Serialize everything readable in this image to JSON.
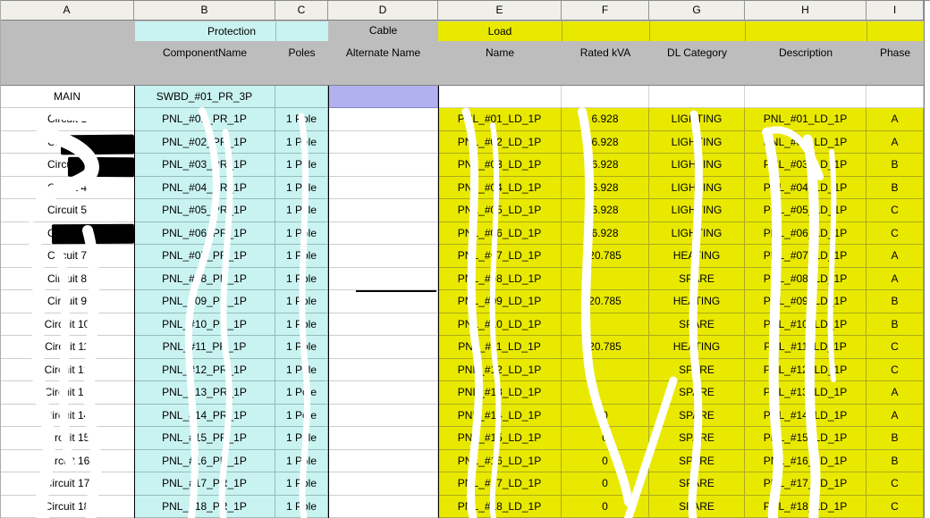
{
  "columns": {
    "letters": [
      "A",
      "B",
      "C",
      "D",
      "E",
      "F",
      "G",
      "H",
      "I"
    ]
  },
  "groups": {
    "protection_label": "Protection",
    "cable_label": "Cable",
    "load_label": "Load"
  },
  "fields": {
    "component_name": "ComponentName",
    "poles": "Poles",
    "alternate_name": "Alternate Name",
    "name": "Name",
    "rated_kva": "Rated kVA",
    "dl_category": "DL Category",
    "description": "Description",
    "phase": "Phase"
  },
  "main_row": {
    "label": "MAIN",
    "component_name": "SWBD_#01_PR_3P"
  },
  "rows": [
    {
      "circuit": "Circuit 1",
      "component": "PNL_#01_PR_1P",
      "poles": "1 Pole",
      "load_name": "PNL_#01_LD_1P",
      "rated_kva": "6.928",
      "dl_category": "LIGHTING",
      "description": "PNL_#01_LD_1P",
      "phase": "A"
    },
    {
      "circuit": "Circuit 2",
      "component": "PNL_#02_PR_1P",
      "poles": "1 Pole",
      "load_name": "PNL_#02_LD_1P",
      "rated_kva": "6.928",
      "dl_category": "LIGHTING",
      "description": "PNL_#02_LD_1P",
      "phase": "A"
    },
    {
      "circuit": "Circuit 3",
      "component": "PNL_#03_PR_1P",
      "poles": "1 Pole",
      "load_name": "PNL_#03_LD_1P",
      "rated_kva": "6.928",
      "dl_category": "LIGHTING",
      "description": "PNL_#03_LD_1P",
      "phase": "B"
    },
    {
      "circuit": "Circuit 4",
      "component": "PNL_#04_PR_1P",
      "poles": "1 Pole",
      "load_name": "PNL_#04_LD_1P",
      "rated_kva": "6.928",
      "dl_category": "LIGHTING",
      "description": "PNL_#04_LD_1P",
      "phase": "B"
    },
    {
      "circuit": "Circuit 5",
      "component": "PNL_#05_PR_1P",
      "poles": "1 Pole",
      "load_name": "PNL_#05_LD_1P",
      "rated_kva": "6.928",
      "dl_category": "LIGHTING",
      "description": "PNL_#05_LD_1P",
      "phase": "C"
    },
    {
      "circuit": "Circuit 6",
      "component": "PNL_#06_PR_1P",
      "poles": "1 Pole",
      "load_name": "PNL_#06_LD_1P",
      "rated_kva": "6.928",
      "dl_category": "LIGHTING",
      "description": "PNL_#06_LD_1P",
      "phase": "C"
    },
    {
      "circuit": "Circuit 7",
      "component": "PNL_#07_PR_1P",
      "poles": "1 Pole",
      "load_name": "PNL_#07_LD_1P",
      "rated_kva": "20.785",
      "dl_category": "HEATING",
      "description": "PNL_#07_LD_1P",
      "phase": "A"
    },
    {
      "circuit": "Circuit 8",
      "component": "PNL_#08_PR_1P",
      "poles": "1 Pole",
      "load_name": "PNL_#08_LD_1P",
      "rated_kva": "",
      "dl_category": "SPARE",
      "description": "PNL_#08_LD_1P",
      "phase": "A"
    },
    {
      "circuit": "Circuit 9",
      "component": "PNL_#09_PR_1P",
      "poles": "1 Pole",
      "load_name": "PNL_#09_LD_1P",
      "rated_kva": "20.785",
      "dl_category": "HEATING",
      "description": "PNL_#09_LD_1P",
      "phase": "B"
    },
    {
      "circuit": "Circuit 10",
      "component": "PNL_#10_PR_1P",
      "poles": "1 Pole",
      "load_name": "PNL_#10_LD_1P",
      "rated_kva": "",
      "dl_category": "SPARE",
      "description": "PNL_#10_LD_1P",
      "phase": "B"
    },
    {
      "circuit": "Circuit 11",
      "component": "PNL_#11_PR_1P",
      "poles": "1 Pole",
      "load_name": "PNL_#11_LD_1P",
      "rated_kva": "20.785",
      "dl_category": "HEATING",
      "description": "PNL_#11_LD_1P",
      "phase": "C"
    },
    {
      "circuit": "Circuit 12",
      "component": "PNL_#12_PR_1P",
      "poles": "1 Pole",
      "load_name": "PNL_#12_LD_1P",
      "rated_kva": "",
      "dl_category": "SPARE",
      "description": "PNL_#12_LD_1P",
      "phase": "C"
    },
    {
      "circuit": "Circuit 13",
      "component": "PNL_#13_PR_1P",
      "poles": "1 Pole",
      "load_name": "PNL_#13_LD_1P",
      "rated_kva": "",
      "dl_category": "SPARE",
      "description": "PNL_#13_LD_1P",
      "phase": "A"
    },
    {
      "circuit": "Circuit 14",
      "component": "PNL_#14_PR_1P",
      "poles": "1 Pole",
      "load_name": "PNL_#14_LD_1P",
      "rated_kva": "0",
      "dl_category": "SPARE",
      "description": "PNL_#14_LD_1P",
      "phase": "A"
    },
    {
      "circuit": "Circuit 15",
      "component": "PNL_#15_PR_1P",
      "poles": "1 Pole",
      "load_name": "PNL_#15_LD_1P",
      "rated_kva": "0",
      "dl_category": "SPARE",
      "description": "PNL_#15_LD_1P",
      "phase": "B"
    },
    {
      "circuit": "Circuit 16",
      "component": "PNL_#16_PR_1P",
      "poles": "1 Pole",
      "load_name": "PNL_#16_LD_1P",
      "rated_kva": "0",
      "dl_category": "SPARE",
      "description": "PNL_#16_LD_1P",
      "phase": "B"
    },
    {
      "circuit": "Circuit 17",
      "component": "PNL_#17_PR_1P",
      "poles": "1 Pole",
      "load_name": "PNL_#17_LD_1P",
      "rated_kva": "0",
      "dl_category": "SPARE",
      "description": "PNL_#17_LD_1P",
      "phase": "C"
    },
    {
      "circuit": "Circuit 18",
      "component": "PNL_#18_PR_1P",
      "poles": "1 Pole",
      "load_name": "PNL_#18_LD_1P",
      "rated_kva": "0",
      "dl_category": "SPARE",
      "description": "PNL_#18_LD_1P",
      "phase": "C"
    }
  ],
  "colors": {
    "cyan": "#c9f3f1",
    "yellow": "#e9e900",
    "header_gray": "#bdbdbd",
    "lavender": "#b2b1f0",
    "letters_bg": "#f0efe9"
  }
}
